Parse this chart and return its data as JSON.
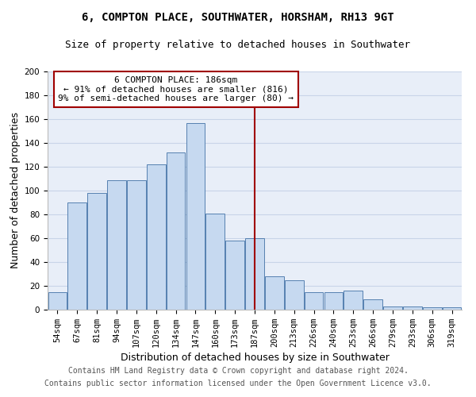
{
  "title1": "6, COMPTON PLACE, SOUTHWATER, HORSHAM, RH13 9GT",
  "title2": "Size of property relative to detached houses in Southwater",
  "xlabel": "Distribution of detached houses by size in Southwater",
  "ylabel": "Number of detached properties",
  "footnote1": "Contains HM Land Registry data © Crown copyright and database right 2024.",
  "footnote2": "Contains public sector information licensed under the Open Government Licence v3.0.",
  "categories": [
    "54sqm",
    "67sqm",
    "81sqm",
    "94sqm",
    "107sqm",
    "120sqm",
    "134sqm",
    "147sqm",
    "160sqm",
    "173sqm",
    "187sqm",
    "200sqm",
    "213sqm",
    "226sqm",
    "240sqm",
    "253sqm",
    "266sqm",
    "279sqm",
    "293sqm",
    "306sqm",
    "319sqm"
  ],
  "values": [
    15,
    90,
    98,
    109,
    109,
    122,
    132,
    157,
    81,
    58,
    60,
    28,
    25,
    15,
    15,
    16,
    9,
    3,
    3,
    2,
    2
  ],
  "bar_color": "#c6d9f0",
  "bar_edge_color": "#5580b0",
  "annotation_text": "6 COMPTON PLACE: 186sqm\n← 91% of detached houses are smaller (816)\n9% of semi-detached houses are larger (80) →",
  "annotation_box_color": "#a00000",
  "vline_color": "#a00000",
  "vline_x_index": 10,
  "ylim": [
    0,
    200
  ],
  "yticks": [
    0,
    20,
    40,
    60,
    80,
    100,
    120,
    140,
    160,
    180,
    200
  ],
  "grid_color": "#c8d4e8",
  "bg_color": "#e8eef8",
  "title_fontsize": 10,
  "subtitle_fontsize": 9,
  "ylabel_fontsize": 9,
  "xlabel_fontsize": 9,
  "tick_fontsize": 7.5,
  "footnote_fontsize": 7,
  "annot_fontsize": 8
}
